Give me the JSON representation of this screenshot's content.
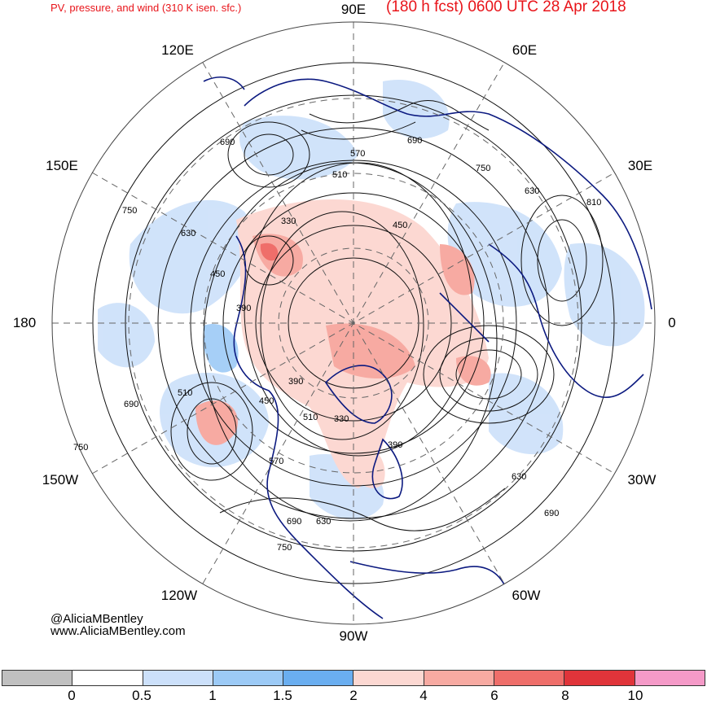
{
  "header": {
    "left_title": "PV, pressure, and wind (310 K isen. sfc.)",
    "right_title": "(180 h fcst) 0600 UTC 28 Apr 2018"
  },
  "longitude_labels": {
    "lon_90e": "90E",
    "lon_60e": "60E",
    "lon_120e": "120E",
    "lon_30e": "30E",
    "lon_150e": "150E",
    "lon_0": "0",
    "lon_180": "180",
    "lon_30w": "30W",
    "lon_150w": "150W",
    "lon_60w": "60W",
    "lon_120w": "120W",
    "lon_90w": "90W"
  },
  "pressure_labels": [
    "690",
    "630",
    "570",
    "510",
    "450",
    "390",
    "330",
    "750",
    "810"
  ],
  "credits": {
    "handle": "@AliciaMBentley",
    "website": "www.AliciaMBentley.com"
  },
  "legend": {
    "colors": [
      "#c0c0c0",
      "#ffffff",
      "#cce0fa",
      "#9ccaf6",
      "#6aaef0",
      "#fcd8d2",
      "#f7aaa2",
      "#ef6e6a",
      "#e0343a",
      "#f59ac8"
    ],
    "labels": [
      "0",
      "0.5",
      "1",
      "1.5",
      "2",
      "4",
      "6",
      "8",
      "10"
    ]
  },
  "colors": {
    "title": "#e8141a",
    "coastline": "#0c1a80",
    "contour": "#111111",
    "grid": "#666666"
  }
}
